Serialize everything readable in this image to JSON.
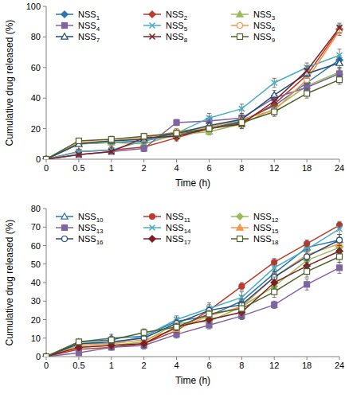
{
  "chart_data": [
    {
      "type": "line",
      "x_label": "Time (h)",
      "y_label": "Cumulative drug released (%)",
      "categories": [
        "0",
        "0.5",
        "1",
        "2",
        "4",
        "6",
        "8",
        "12",
        "18",
        "24"
      ],
      "ylim": [
        0,
        100
      ],
      "yticks": [
        0,
        20,
        40,
        60,
        80,
        100
      ],
      "grid": false,
      "legend": "top-left",
      "series": [
        {
          "name": "NSS1",
          "color": "#2e75b6",
          "marker": "diamond",
          "values": [
            0,
            10,
            11,
            12,
            16,
            20,
            25,
            35,
            50,
            65
          ],
          "errors": [
            0,
            1,
            2,
            2,
            2,
            2,
            3,
            3,
            3,
            3
          ]
        },
        {
          "name": "NSS2",
          "color": "#c0392b",
          "marker": "diamond",
          "values": [
            0,
            5,
            6,
            8,
            14,
            20,
            24,
            36,
            55,
            85
          ],
          "errors": [
            0,
            1,
            1,
            2,
            2,
            2,
            3,
            3,
            3,
            3
          ]
        },
        {
          "name": "NSS3",
          "color": "#9bbb59",
          "marker": "triangle",
          "values": [
            0,
            10,
            11,
            10,
            16,
            18,
            23,
            33,
            48,
            57
          ],
          "errors": [
            0,
            1,
            2,
            2,
            2,
            2,
            3,
            3,
            3,
            3
          ]
        },
        {
          "name": "NSS4",
          "color": "#8064a2",
          "marker": "square",
          "values": [
            0,
            3,
            5,
            7,
            24,
            25,
            27,
            40,
            47,
            56
          ],
          "errors": [
            0,
            1,
            1,
            2,
            2,
            3,
            3,
            3,
            3,
            3
          ]
        },
        {
          "name": "NSS5",
          "color": "#4bacc6",
          "marker": "x",
          "values": [
            0,
            5,
            6,
            12,
            17,
            27,
            33,
            50,
            60,
            68
          ],
          "errors": [
            0,
            1,
            2,
            2,
            2,
            3,
            3,
            3,
            3,
            4
          ]
        },
        {
          "name": "NSS6",
          "color": "#f79646",
          "marker": "circle-open",
          "values": [
            0,
            11,
            12,
            14,
            18,
            21,
            26,
            32,
            52,
            84
          ],
          "errors": [
            0,
            1,
            2,
            2,
            2,
            2,
            3,
            3,
            3,
            3
          ]
        },
        {
          "name": "NSS7",
          "color": "#1f4e79",
          "marker": "triangle-open",
          "values": [
            0,
            10,
            12,
            13,
            17,
            22,
            26,
            42,
            56,
            63
          ],
          "errors": [
            0,
            1,
            2,
            2,
            2,
            2,
            3,
            3,
            3,
            3
          ]
        },
        {
          "name": "NSS8",
          "color": "#7b1f1f",
          "marker": "x",
          "values": [
            0,
            3,
            5,
            14,
            15,
            20,
            23,
            38,
            58,
            86
          ],
          "errors": [
            0,
            1,
            1,
            2,
            2,
            2,
            3,
            3,
            3,
            3
          ]
        },
        {
          "name": "NSS9",
          "color": "#4f6228",
          "marker": "square-open",
          "values": [
            0,
            12,
            13,
            15,
            17,
            20,
            24,
            31,
            43,
            52
          ],
          "errors": [
            0,
            1,
            2,
            2,
            2,
            2,
            3,
            3,
            3,
            3
          ]
        }
      ]
    },
    {
      "type": "line",
      "x_label": "Time (h)",
      "y_label": "Cumulative drug released (%)",
      "categories": [
        "0",
        "0.5",
        "1",
        "2",
        "4",
        "6",
        "8",
        "12",
        "18",
        "24"
      ],
      "ylim": [
        0,
        80
      ],
      "yticks": [
        0,
        10,
        20,
        30,
        40,
        50,
        60,
        70,
        80
      ],
      "grid": false,
      "legend": "top-left",
      "series": [
        {
          "name": "NSS10",
          "color": "#2e75b6",
          "marker": "triangle-open",
          "values": [
            0,
            8,
            10,
            11,
            19,
            22,
            30,
            45,
            59,
            63
          ],
          "errors": [
            0,
            1,
            2,
            2,
            2,
            2,
            3,
            3,
            3,
            3
          ]
        },
        {
          "name": "NSS11",
          "color": "#c0392b",
          "marker": "circle",
          "values": [
            0,
            4,
            5,
            7,
            14,
            25,
            38,
            51,
            61,
            71
          ],
          "errors": [
            0,
            1,
            1,
            2,
            2,
            2,
            2,
            2,
            2,
            2
          ]
        },
        {
          "name": "NSS12",
          "color": "#9bbb59",
          "marker": "diamond",
          "values": [
            0,
            5,
            6,
            8,
            18,
            19,
            27,
            38,
            52,
            59
          ],
          "errors": [
            0,
            1,
            2,
            2,
            2,
            2,
            3,
            3,
            3,
            3
          ]
        },
        {
          "name": "NSS13",
          "color": "#8064a2",
          "marker": "square",
          "values": [
            0,
            2,
            5,
            6,
            12,
            17,
            22,
            28,
            39,
            48
          ],
          "errors": [
            0,
            1,
            1,
            2,
            2,
            2,
            2,
            2,
            3,
            3
          ]
        },
        {
          "name": "NSS14",
          "color": "#4bacc6",
          "marker": "x",
          "values": [
            0,
            7,
            7,
            11,
            20,
            26,
            32,
            48,
            58,
            69
          ],
          "errors": [
            0,
            1,
            2,
            2,
            2,
            3,
            3,
            3,
            3,
            3
          ]
        },
        {
          "name": "NSS15",
          "color": "#f79646",
          "marker": "triangle",
          "values": [
            0,
            6,
            7,
            9,
            15,
            22,
            27,
            43,
            55,
            61
          ],
          "errors": [
            0,
            1,
            2,
            2,
            2,
            2,
            3,
            3,
            3,
            3
          ]
        },
        {
          "name": "NSS16",
          "color": "#1f4e79",
          "marker": "circle-open",
          "values": [
            0,
            7,
            8,
            10,
            18,
            25,
            28,
            43,
            54,
            63
          ],
          "errors": [
            0,
            1,
            2,
            2,
            2,
            3,
            3,
            3,
            3,
            3
          ]
        },
        {
          "name": "NSS17",
          "color": "#7b1f1f",
          "marker": "diamond",
          "values": [
            0,
            5,
            6,
            7,
            16,
            20,
            24,
            40,
            49,
            57
          ],
          "errors": [
            0,
            1,
            2,
            2,
            2,
            2,
            3,
            3,
            3,
            3
          ]
        },
        {
          "name": "NSS18",
          "color": "#4f6228",
          "marker": "square-open",
          "values": [
            0,
            8,
            9,
            13,
            16,
            23,
            26,
            35,
            46,
            54
          ],
          "errors": [
            0,
            1,
            2,
            2,
            2,
            2,
            3,
            3,
            3,
            3
          ]
        }
      ]
    }
  ]
}
